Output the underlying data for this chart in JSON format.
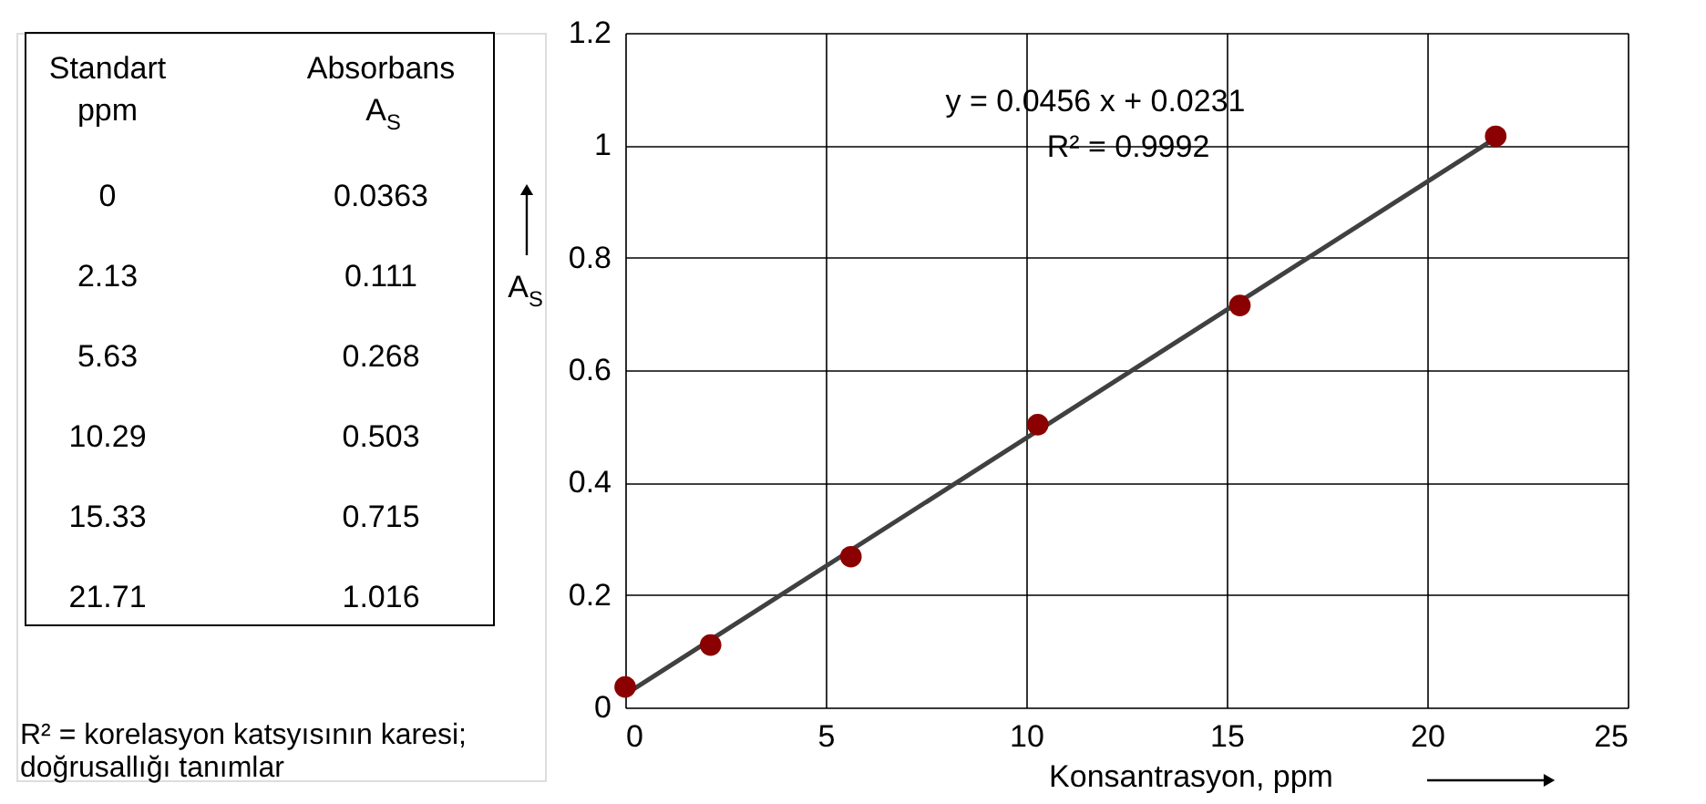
{
  "chart_data": {
    "type": "scatter",
    "xlabel": "Konsantrasyon, ppm",
    "ylabel": "A$_{S}$",
    "annotations": [
      "Standart",
      "ppm",
      "Absorbans",
      "A$_{S}$",
      "y = 0.0456 x + 0.0231",
      "R² = 0.9992",
      "R² = korelasyon katsyısının karesi;",
      "doğrusallığı tanımlar",
      "0",
      "0.0363",
      "2.13",
      "0.111",
      "5.63",
      "0.268",
      "10.29",
      "0.503",
      "15.33",
      "0.715",
      "21.71",
      "1.016"
    ],
    "x": [
      0,
      2.13,
      5.63,
      10.29,
      15.33,
      21.71
    ],
    "series": [
      {
        "type": "scatter",
        "color": "#8b0000",
        "marker": "circle",
        "values": [
          0.0363,
          0.111,
          0.268,
          0.503,
          0.715,
          1.016
        ]
      },
      {
        "type": "line",
        "color": "#404040",
        "marker": "none",
        "x": [
          0,
          21.71
        ],
        "values": [
          0.023,
          1.013
        ]
      }
    ],
    "grid": true,
    "xlim": [
      0,
      25
    ],
    "xticks": [
      0,
      5,
      10,
      15,
      20,
      25
    ],
    "ylim": [
      0,
      1.2
    ],
    "yticks": [
      0,
      0.2,
      0.4,
      0.6,
      0.8,
      1,
      1.2
    ]
  }
}
